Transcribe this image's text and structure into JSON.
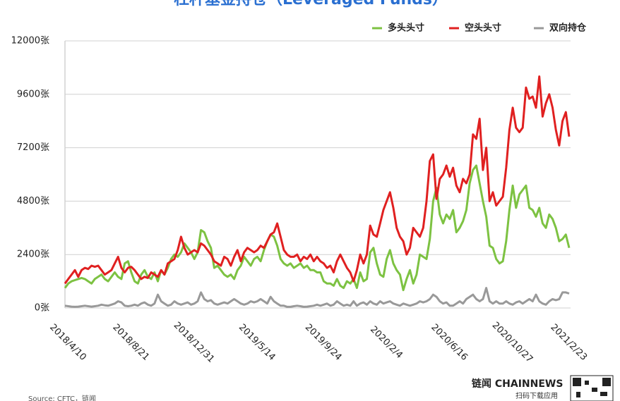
{
  "chart_data": {
    "type": "line",
    "title": "杠杆基金持仓（Leveraged Funds）",
    "source": "Source: CFTC，链闻",
    "logo": "链闻 CHAINNEWS",
    "logo_caption": "扫码下载应用",
    "categories": [
      "2018/4/10",
      null,
      null,
      null,
      null,
      null,
      null,
      null,
      null,
      null,
      null,
      null,
      null,
      null,
      null,
      null,
      null,
      null,
      null,
      "2018/8/21",
      null,
      null,
      null,
      null,
      null,
      null,
      null,
      null,
      null,
      null,
      null,
      null,
      null,
      null,
      null,
      null,
      null,
      null,
      "2018/12/31",
      null,
      null,
      null,
      null,
      null,
      null,
      null,
      null,
      null,
      null,
      null,
      null,
      null,
      null,
      null,
      null,
      null,
      null,
      "2019/5/14",
      null,
      null,
      null,
      null,
      null,
      null,
      null,
      null,
      null,
      null,
      null,
      null,
      null,
      null,
      null,
      null,
      null,
      null,
      null,
      "2019/9/24",
      null,
      null,
      null,
      null,
      null,
      null,
      null,
      null,
      null,
      null,
      null,
      null,
      null,
      null,
      null,
      null,
      null,
      null,
      "2020/2/4",
      null,
      null,
      null,
      null,
      null,
      null,
      null,
      null,
      null,
      null,
      null,
      null,
      null,
      null,
      null,
      null,
      null,
      null,
      "2020/6/16",
      null,
      null,
      null,
      null,
      null,
      null,
      null,
      null,
      null,
      null,
      null,
      null,
      null,
      null,
      null,
      null,
      null,
      null,
      "2020/10/27",
      null,
      null,
      null,
      null,
      null,
      null,
      null,
      null,
      null,
      null,
      null,
      null,
      null,
      null,
      null,
      null,
      "2021/2/23",
      null
    ],
    "ylim": [
      0,
      12000
    ],
    "yticks": [
      {
        "value": 0,
        "label": "0张"
      },
      {
        "value": 2400,
        "label": "2400张"
      },
      {
        "value": 4800,
        "label": "4800张"
      },
      {
        "value": 7200,
        "label": "7200张"
      },
      {
        "value": 9600,
        "label": "9600张"
      },
      {
        "value": 12000,
        "label": "12000张"
      }
    ],
    "grid": true,
    "legend": "top-right",
    "series": [
      {
        "name": "多头头寸",
        "color": "#7dc242",
        "values": [
          900,
          1100,
          1200,
          1250,
          1300,
          1350,
          1300,
          1200,
          1100,
          1300,
          1400,
          1500,
          1300,
          1200,
          1400,
          1600,
          1400,
          1300,
          2000,
          2100,
          1600,
          1200,
          1100,
          1500,
          1700,
          1400,
          1300,
          1600,
          1200,
          1700,
          1500,
          1800,
          2200,
          2400,
          2300,
          2500,
          2900,
          2700,
          2500,
          2200,
          2500,
          3500,
          3400,
          3000,
          2700,
          1800,
          1900,
          1700,
          1500,
          1400,
          1500,
          1300,
          1700,
          1900,
          2300,
          2100,
          1900,
          2200,
          2300,
          2100,
          2600,
          3000,
          3300,
          3200,
          2800,
          2200,
          2000,
          1900,
          2000,
          1800,
          1900,
          2000,
          1800,
          1900,
          1700,
          1700,
          1600,
          1600,
          1200,
          1100,
          1100,
          1000,
          1300,
          1000,
          900,
          1200,
          1100,
          1300,
          900,
          1600,
          1200,
          1300,
          2500,
          2700,
          2000,
          1500,
          1400,
          2200,
          2600,
          2000,
          1700,
          1500,
          800,
          1300,
          1700,
          1100,
          1500,
          2400,
          2300,
          2200,
          3100,
          4800,
          5400,
          4200,
          3800,
          4200,
          4000,
          4400,
          3400,
          3600,
          3900,
          4400,
          5600,
          6200,
          6400,
          5600,
          4800,
          4100,
          2800,
          2700,
          2200,
          2000,
          2100,
          3000,
          4400,
          5500,
          4500,
          5100,
          5300,
          5500,
          4500,
          4400,
          4100,
          4500,
          3800,
          3600,
          4200,
          4000,
          3600,
          3000,
          3100,
          3300,
          2700
        ]
      },
      {
        "name": "空头头寸",
        "color": "#e02020",
        "values": [
          1100,
          1300,
          1500,
          1700,
          1400,
          1700,
          1800,
          1750,
          1900,
          1850,
          1900,
          1700,
          1500,
          1600,
          1700,
          2000,
          2300,
          1800,
          1600,
          1800,
          1850,
          1700,
          1500,
          1300,
          1400,
          1350,
          1600,
          1500,
          1400,
          1700,
          1500,
          2000,
          2100,
          2200,
          2600,
          3200,
          2700,
          2400,
          2500,
          2600,
          2500,
          2900,
          2800,
          2600,
          2400,
          2100,
          2000,
          1900,
          2300,
          2200,
          1900,
          2300,
          2600,
          2100,
          2500,
          2700,
          2600,
          2500,
          2600,
          2800,
          2700,
          3000,
          3300,
          3400,
          3800,
          3200,
          2600,
          2400,
          2300,
          2300,
          2400,
          2100,
          2300,
          2200,
          2400,
          2100,
          2300,
          2100,
          2000,
          1800,
          1900,
          1600,
          2100,
          2400,
          2100,
          1800,
          1600,
          1200,
          1700,
          2400,
          2000,
          2400,
          3700,
          3300,
          3200,
          3800,
          4400,
          4800,
          5200,
          4500,
          3600,
          3200,
          3000,
          2400,
          2700,
          3600,
          3400,
          3200,
          3600,
          4800,
          6600,
          6900,
          4900,
          5800,
          6000,
          6400,
          5900,
          6300,
          5500,
          5200,
          5800,
          5600,
          6000,
          7800,
          7600,
          8500,
          6200,
          7200,
          4800,
          5200,
          4600,
          4800,
          5000,
          6300,
          8000,
          9000,
          8100,
          7900,
          8100,
          9900,
          9400,
          9500,
          9000,
          10400,
          8600,
          9200,
          9600,
          9000,
          8000,
          7300,
          8400,
          8800,
          7700
        ]
      },
      {
        "name": "双向持仓",
        "color": "#999999",
        "values": [
          100,
          80,
          60,
          50,
          60,
          80,
          100,
          80,
          60,
          80,
          100,
          150,
          120,
          100,
          150,
          200,
          300,
          250,
          100,
          80,
          100,
          150,
          100,
          200,
          250,
          150,
          100,
          200,
          600,
          300,
          200,
          100,
          150,
          300,
          200,
          150,
          200,
          250,
          150,
          200,
          300,
          700,
          400,
          300,
          350,
          200,
          150,
          200,
          250,
          200,
          300,
          400,
          300,
          200,
          150,
          200,
          300,
          250,
          300,
          400,
          300,
          200,
          500,
          300,
          200,
          100,
          100,
          50,
          50,
          80,
          100,
          80,
          50,
          60,
          80,
          100,
          150,
          100,
          150,
          200,
          100,
          150,
          300,
          200,
          100,
          150,
          100,
          300,
          100,
          200,
          250,
          150,
          300,
          200,
          150,
          300,
          200,
          250,
          300,
          200,
          150,
          100,
          200,
          150,
          100,
          150,
          200,
          300,
          250,
          300,
          400,
          600,
          500,
          300,
          200,
          250,
          100,
          100,
          200,
          300,
          200,
          400,
          500,
          600,
          400,
          300,
          400,
          900,
          300,
          200,
          300,
          200,
          200,
          300,
          200,
          150,
          250,
          300,
          200,
          300,
          400,
          300,
          600,
          300,
          200,
          150,
          300,
          400,
          350,
          400,
          700,
          700,
          650
        ]
      }
    ]
  }
}
